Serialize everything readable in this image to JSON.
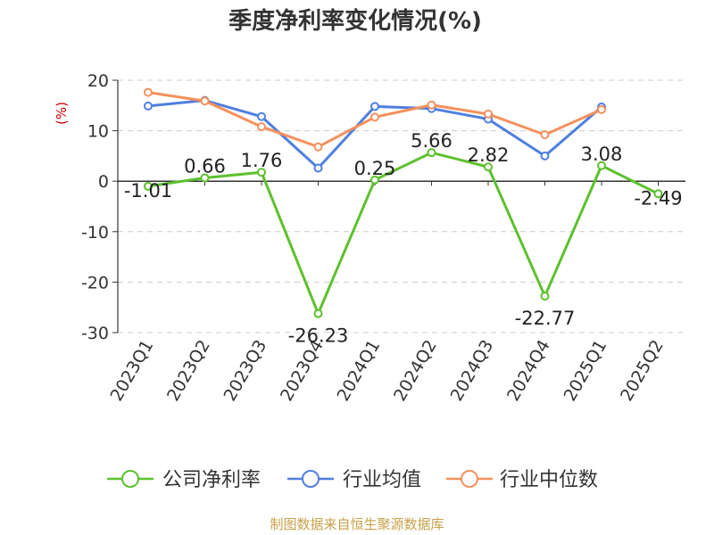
{
  "chart_data": {
    "type": "line",
    "title": "季度净利率变化情况(%)",
    "ylabel": "(%)",
    "xlabel": "",
    "ylim": [
      -30,
      20
    ],
    "yticks": [
      20,
      10,
      0,
      -10,
      -20,
      -30
    ],
    "grid": true,
    "legend_position": "bottom",
    "categories": [
      "2023Q1",
      "2023Q2",
      "2023Q3",
      "2023Q4",
      "2024Q1",
      "2024Q2",
      "2024Q3",
      "2024Q4",
      "2025Q1",
      "2025Q2"
    ],
    "series": [
      {
        "name": "公司净利率",
        "color": "#5cc12d",
        "values": [
          -1.01,
          0.66,
          1.76,
          -26.23,
          0.25,
          5.66,
          2.82,
          -22.77,
          3.08,
          -2.49
        ],
        "labels": [
          "-1.01",
          "0.66",
          "1.76",
          "-26.23",
          "0.25",
          "5.66",
          "2.82",
          "-22.77",
          "3.08",
          "-2.49"
        ]
      },
      {
        "name": "行业均值",
        "color": "#4f7fe0",
        "values": [
          14.9,
          16.0,
          12.8,
          2.6,
          14.8,
          14.4,
          12.3,
          5.0,
          14.7,
          null
        ]
      },
      {
        "name": "行业中位数",
        "color": "#f5905c",
        "values": [
          17.6,
          15.9,
          10.8,
          6.8,
          12.7,
          15.1,
          13.3,
          9.2,
          14.2,
          null
        ]
      }
    ]
  },
  "footer": {
    "source": "制图数据来自恒生聚源数据库"
  }
}
